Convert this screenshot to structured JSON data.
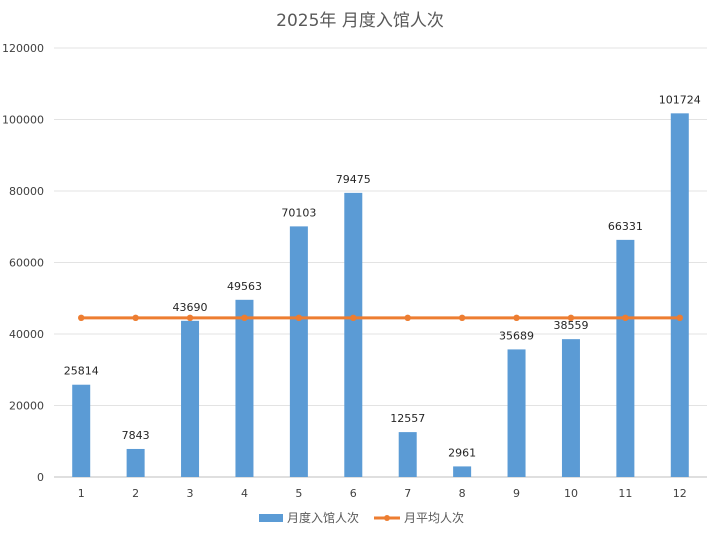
{
  "chart_data": {
    "type": "bar",
    "title": "2025年  月度入馆人次",
    "categories": [
      "1",
      "2",
      "3",
      "4",
      "5",
      "6",
      "7",
      "8",
      "9",
      "10",
      "11",
      "12"
    ],
    "series": [
      {
        "name": "月度入馆人次",
        "type": "bar",
        "color": "#5b9bd5",
        "values": [
          25814,
          7843,
          43690,
          49563,
          70103,
          79475,
          12557,
          2961,
          35689,
          38559,
          66331,
          101724
        ]
      },
      {
        "name": "月平均人次",
        "type": "line",
        "color": "#ed7d31",
        "values": [
          44526,
          44526,
          44526,
          44526,
          44526,
          44526,
          44526,
          44526,
          44526,
          44526,
          44526,
          44526
        ]
      }
    ],
    "ylim": [
      0,
      120000
    ],
    "yticks": [
      "0",
      "20000",
      "40000",
      "60000",
      "80000",
      "100000",
      "120000"
    ],
    "grid": true,
    "legend": "bottom"
  }
}
